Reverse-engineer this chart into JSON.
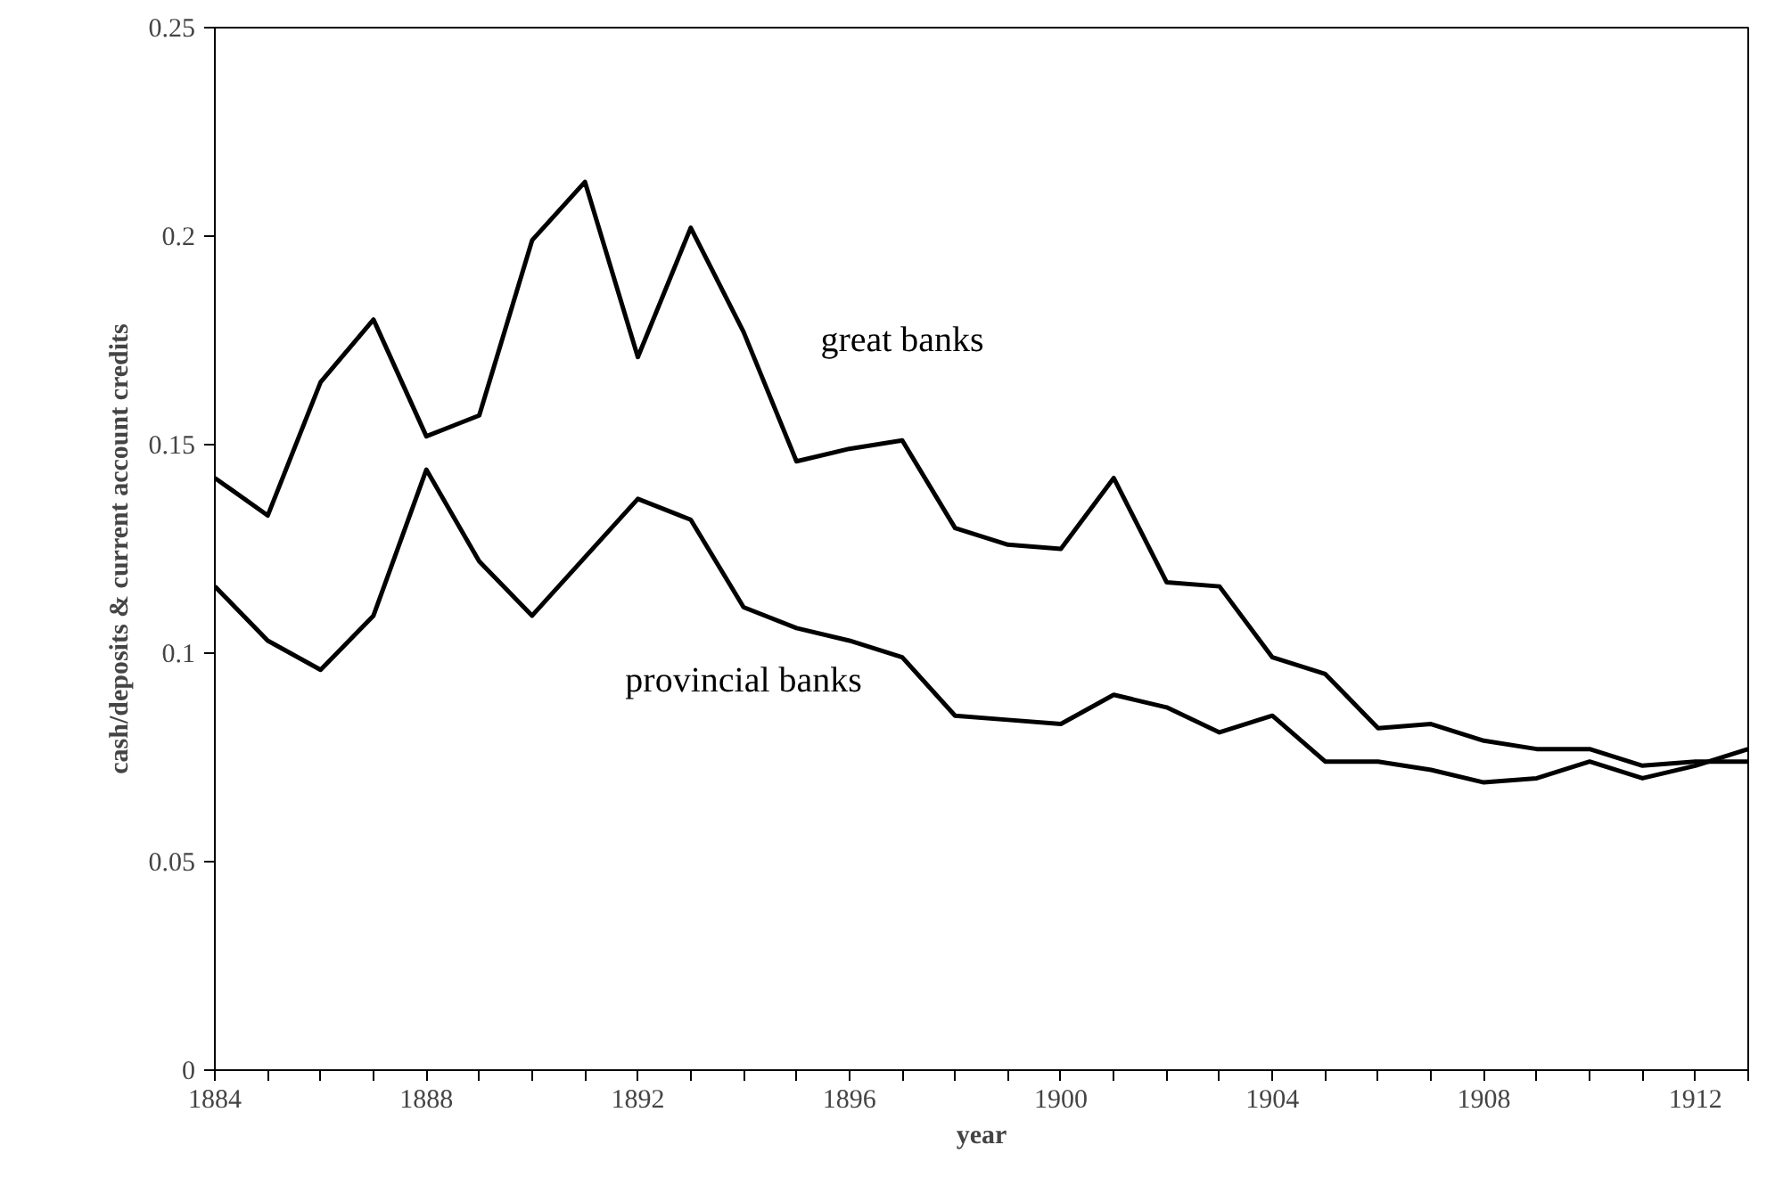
{
  "chart_data": {
    "type": "line",
    "xlabel": "year",
    "ylabel": "cash/deposits & current account credits",
    "x": [
      1884,
      1885,
      1886,
      1887,
      1888,
      1889,
      1890,
      1891,
      1892,
      1893,
      1894,
      1895,
      1896,
      1897,
      1898,
      1899,
      1900,
      1901,
      1902,
      1903,
      1904,
      1905,
      1906,
      1907,
      1908,
      1909,
      1910,
      1911,
      1912,
      1913
    ],
    "series": [
      {
        "name": "great banks",
        "color": "#000000",
        "values": [
          0.142,
          0.133,
          0.165,
          0.18,
          0.152,
          0.157,
          0.199,
          0.213,
          0.171,
          0.202,
          0.177,
          0.146,
          0.149,
          0.151,
          0.13,
          0.126,
          0.125,
          0.142,
          0.117,
          0.116,
          0.099,
          0.095,
          0.082,
          0.083,
          0.079,
          0.077,
          0.077,
          0.073,
          0.074,
          0.074
        ]
      },
      {
        "name": "provincial banks",
        "color": "#000000",
        "values": [
          0.116,
          0.103,
          0.096,
          0.109,
          0.144,
          0.122,
          0.109,
          0.123,
          0.137,
          0.132,
          0.111,
          0.106,
          0.103,
          0.099,
          0.085,
          0.084,
          0.083,
          0.09,
          0.087,
          0.081,
          0.085,
          0.074,
          0.074,
          0.072,
          0.069,
          0.07,
          0.074,
          0.07,
          0.073,
          0.077
        ]
      }
    ],
    "xlim": [
      1884,
      1913
    ],
    "ylim": [
      0,
      0.25
    ],
    "xticks": [
      1884,
      {
        "value": 1885,
        "label": null
      },
      {
        "value": 1886,
        "label": null
      },
      {
        "value": 1887,
        "label": null
      },
      1888,
      {
        "value": 1889,
        "label": null
      },
      {
        "value": 1890,
        "label": null
      },
      {
        "value": 1891,
        "label": null
      },
      1892,
      {
        "value": 1893,
        "label": null
      },
      {
        "value": 1894,
        "label": null
      },
      {
        "value": 1895,
        "label": null
      },
      1896,
      {
        "value": 1897,
        "label": null
      },
      {
        "value": 1898,
        "label": null
      },
      {
        "value": 1899,
        "label": null
      },
      1900,
      {
        "value": 1901,
        "label": null
      },
      {
        "value": 1902,
        "label": null
      },
      {
        "value": 1903,
        "label": null
      },
      1904,
      {
        "value": 1905,
        "label": null
      },
      {
        "value": 1906,
        "label": null
      },
      {
        "value": 1907,
        "label": null
      },
      1908,
      {
        "value": 1909,
        "label": null
      },
      {
        "value": 1910,
        "label": null
      },
      {
        "value": 1911,
        "label": null
      },
      1912,
      {
        "value": 1913,
        "label": null
      }
    ],
    "yticks": [
      0,
      0.05,
      0.1,
      0.15,
      0.2,
      0.25
    ],
    "grid": false,
    "legend": false,
    "marker": "none",
    "line_style": "solid"
  }
}
